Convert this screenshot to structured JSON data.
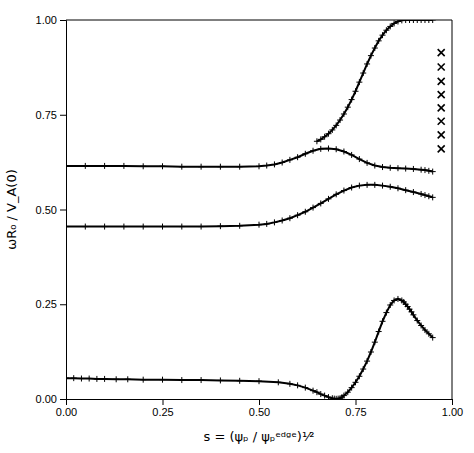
{
  "chart_data": {
    "type": "line",
    "xlabel": "s = (ψₚ / ψₚᵉᵈᵍᵉ)¹⁄²",
    "ylabel": "ωR₀ / V_A(0)",
    "xlim": [
      0.0,
      1.0
    ],
    "ylim": [
      0.0,
      1.0
    ],
    "xticks": [
      {
        "value": 0.0,
        "label": "0.00"
      },
      0.25,
      {
        "value": 0.5,
        "label": "0.50"
      },
      0.75,
      {
        "value": 1.0,
        "label": "1.00"
      }
    ],
    "yticks": [
      {
        "value": 0.0,
        "label": "0.00"
      },
      0.25,
      {
        "value": 0.5,
        "label": "0.50"
      },
      0.75,
      {
        "value": 1.0,
        "label": "1.00"
      }
    ],
    "grid": false,
    "series": [
      {
        "color": "#000000",
        "marker": "plus",
        "x": [
          0.0,
          0.02,
          0.04,
          0.06,
          0.08,
          0.1,
          0.13,
          0.16,
          0.2,
          0.25,
          0.3,
          0.35,
          0.4,
          0.45,
          0.5,
          0.55,
          0.58,
          0.6,
          0.62,
          0.64,
          0.65,
          0.66,
          0.67,
          0.68,
          0.69,
          0.695,
          0.7,
          0.705,
          0.71,
          0.715,
          0.72,
          0.73,
          0.74,
          0.75,
          0.76,
          0.77,
          0.78,
          0.79,
          0.8,
          0.81,
          0.82,
          0.83,
          0.84,
          0.85,
          0.86,
          0.87,
          0.875,
          0.88,
          0.885,
          0.89,
          0.895,
          0.9,
          0.91,
          0.92,
          0.93,
          0.94,
          0.95
        ],
        "values": [
          0.055,
          0.055,
          0.054,
          0.054,
          0.053,
          0.053,
          0.052,
          0.052,
          0.051,
          0.051,
          0.05,
          0.05,
          0.049,
          0.048,
          0.047,
          0.044,
          0.04,
          0.036,
          0.03,
          0.022,
          0.018,
          0.013,
          0.009,
          0.005,
          0.002,
          0.001,
          0.0005,
          0.001,
          0.002,
          0.005,
          0.009,
          0.018,
          0.03,
          0.044,
          0.06,
          0.079,
          0.1,
          0.124,
          0.15,
          0.178,
          0.205,
          0.228,
          0.248,
          0.26,
          0.264,
          0.26,
          0.256,
          0.25,
          0.244,
          0.237,
          0.23,
          0.222,
          0.207,
          0.194,
          0.182,
          0.172,
          0.162
        ]
      },
      {
        "color": "#000000",
        "marker": "plus",
        "x": [
          0.0,
          0.05,
          0.1,
          0.15,
          0.2,
          0.25,
          0.3,
          0.35,
          0.4,
          0.45,
          0.5,
          0.52,
          0.54,
          0.56,
          0.58,
          0.6,
          0.62,
          0.64,
          0.66,
          0.68,
          0.7,
          0.72,
          0.74,
          0.76,
          0.78,
          0.8,
          0.82,
          0.84,
          0.86,
          0.88,
          0.9,
          0.92,
          0.93,
          0.94,
          0.95
        ],
        "values": [
          0.455,
          0.455,
          0.455,
          0.455,
          0.455,
          0.455,
          0.455,
          0.455,
          0.456,
          0.457,
          0.46,
          0.462,
          0.466,
          0.471,
          0.477,
          0.485,
          0.494,
          0.505,
          0.516,
          0.528,
          0.54,
          0.55,
          0.558,
          0.563,
          0.565,
          0.565,
          0.563,
          0.56,
          0.556,
          0.551,
          0.546,
          0.541,
          0.538,
          0.535,
          0.532
        ]
      },
      {
        "color": "#000000",
        "marker": "plus",
        "x": [
          0.0,
          0.05,
          0.1,
          0.15,
          0.2,
          0.25,
          0.3,
          0.35,
          0.4,
          0.45,
          0.5,
          0.52,
          0.54,
          0.56,
          0.58,
          0.6,
          0.62,
          0.64,
          0.66,
          0.68,
          0.7,
          0.72,
          0.74,
          0.76,
          0.78,
          0.8,
          0.82,
          0.84,
          0.86,
          0.88,
          0.9,
          0.92,
          0.93,
          0.94,
          0.95
        ],
        "values": [
          0.615,
          0.615,
          0.615,
          0.615,
          0.614,
          0.614,
          0.613,
          0.613,
          0.613,
          0.613,
          0.614,
          0.616,
          0.619,
          0.624,
          0.631,
          0.638,
          0.647,
          0.655,
          0.66,
          0.661,
          0.659,
          0.653,
          0.644,
          0.633,
          0.623,
          0.616,
          0.612,
          0.61,
          0.609,
          0.608,
          0.607,
          0.605,
          0.604,
          0.602,
          0.6
        ]
      },
      {
        "color": "#000000",
        "marker": "plus",
        "x": [
          0.65,
          0.66,
          0.67,
          0.68,
          0.69,
          0.7,
          0.71,
          0.72,
          0.73,
          0.74,
          0.75,
          0.76,
          0.77,
          0.78,
          0.79,
          0.8,
          0.81,
          0.82,
          0.83,
          0.84,
          0.85,
          0.86,
          0.87,
          0.88,
          0.89,
          0.9,
          0.91,
          0.92,
          0.93,
          0.94,
          0.95
        ],
        "values": [
          0.68,
          0.685,
          0.692,
          0.7,
          0.71,
          0.722,
          0.736,
          0.752,
          0.77,
          0.79,
          0.812,
          0.836,
          0.86,
          0.884,
          0.906,
          0.926,
          0.945,
          0.96,
          0.973,
          0.983,
          0.991,
          0.996,
          0.999,
          1.0,
          1.0,
          1.0,
          1.0,
          1.0,
          1.0,
          1.0,
          1.0
        ]
      },
      {
        "type": "scatter",
        "color": "#000000",
        "marker": "x",
        "x": [
          0.972,
          0.972,
          0.972,
          0.972,
          0.972,
          0.972,
          0.972,
          0.972
        ],
        "values": [
          0.66,
          0.697,
          0.733,
          0.768,
          0.803,
          0.838,
          0.876,
          0.914
        ]
      }
    ]
  }
}
